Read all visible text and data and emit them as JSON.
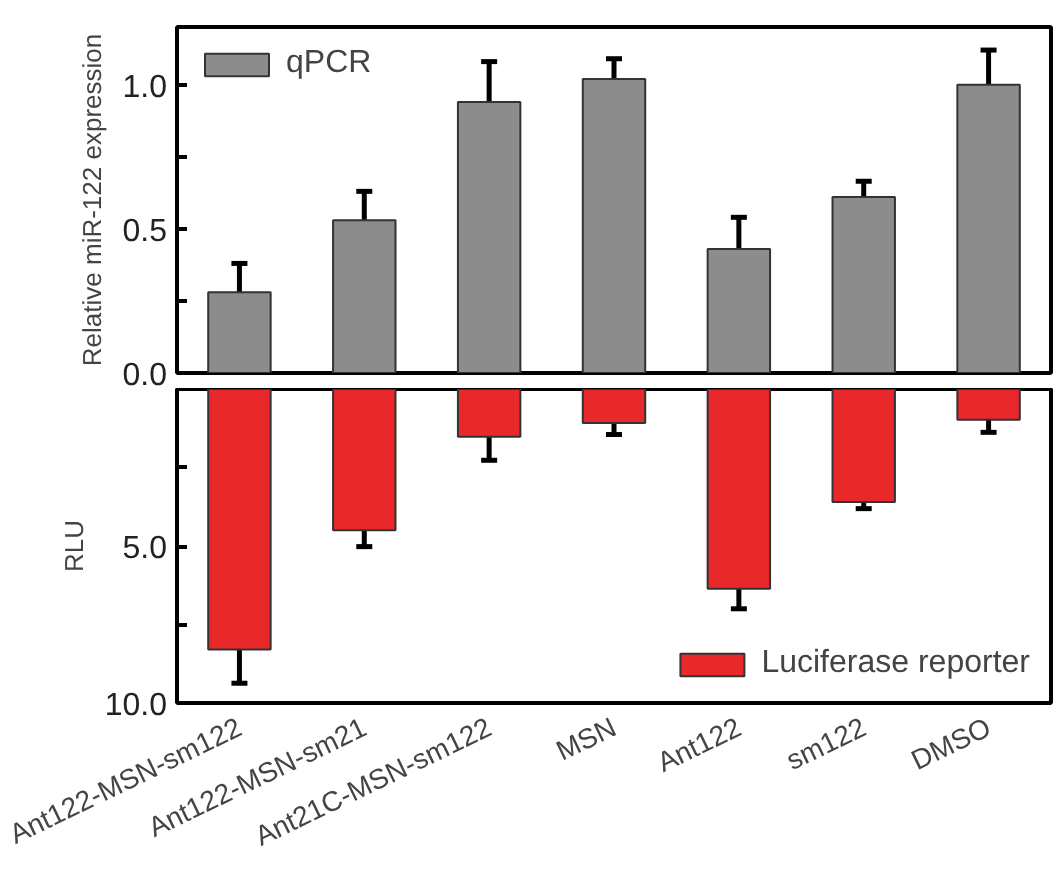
{
  "chart_data": [
    {
      "type": "bar",
      "series": [
        {
          "name": "qPCR",
          "color": "#8c8c8c",
          "values": [
            0.28,
            0.53,
            0.94,
            1.02,
            0.43,
            0.61,
            1.0
          ],
          "errors": [
            0.1,
            0.1,
            0.14,
            0.07,
            0.11,
            0.055,
            0.12
          ]
        }
      ],
      "ylabel": "Relative miR-122 expression",
      "ylim": [
        0,
        1.2
      ],
      "yticks": [
        {
          "value": 0,
          "label": "0.0"
        },
        {
          "value": 0.25,
          "label": null
        },
        {
          "value": 0.5,
          "label": "0.5"
        },
        {
          "value": 0.75,
          "label": null
        },
        {
          "value": 1.0,
          "label": "1.0"
        }
      ],
      "legend": "top left",
      "tick_labels": "y"
    },
    {
      "type": "bar",
      "categories": [
        "Ant122-MSN-sm122",
        "Ant122-MSN-sm21",
        "Ant21C-MSN-sm122",
        "MSN",
        "Ant122",
        "sm122",
        "DMSO"
      ],
      "series": [
        {
          "name": "Luciferase reporter",
          "color": "#e8282b",
          "values": [
            8.3,
            4.5,
            1.52,
            1.08,
            6.36,
            3.6,
            0.98
          ],
          "errors": [
            1.07,
            0.52,
            0.75,
            0.37,
            0.64,
            0.21,
            0.4
          ]
        }
      ],
      "ylabel": "RLU",
      "ylim": [
        10,
        0
      ],
      "yticks": [
        {
          "value": 2.5,
          "label": null
        },
        {
          "value": 5,
          "label": "5.0"
        },
        {
          "value": 7.5,
          "label": null
        },
        {
          "value": 10,
          "label": "10.0"
        }
      ],
      "legend": "bottom right"
    }
  ]
}
